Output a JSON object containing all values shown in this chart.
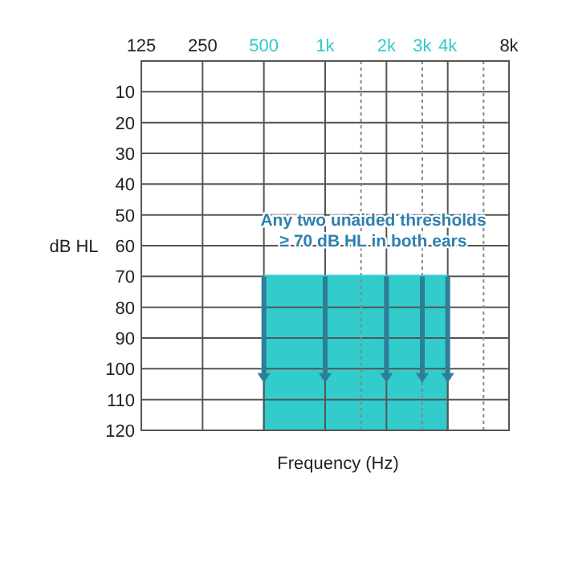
{
  "chart_data": {
    "type": "line",
    "xlabel": "Frequency (Hz)",
    "ylabel": "dB HL",
    "log": "x",
    "grid": true,
    "xlim": [
      125,
      8000
    ],
    "ylim": [
      120,
      0
    ],
    "xticks": [
      125,
      250,
      500,
      {
        "value": 1000,
        "label": "1k"
      },
      {
        "value": 1500,
        "label": null
      },
      {
        "value": 2000,
        "label": "2k"
      },
      {
        "value": 3000,
        "label": "3k"
      },
      {
        "value": 4000,
        "label": "4k"
      },
      {
        "value": 6000,
        "label": null
      },
      {
        "value": 8000,
        "label": "8k"
      }
    ],
    "yticks": [
      10,
      20,
      30,
      40,
      50,
      60,
      70,
      80,
      90,
      100,
      110,
      120
    ],
    "series": [
      {
        "color": "#33cccc",
        "x": [
          500,
          1000,
          2000,
          3000,
          4000
        ],
        "values": [
          70,
          70,
          70,
          70,
          70
        ],
        "lower": [
          120,
          120,
          120,
          120,
          120
        ],
        "upper": [
          70,
          70,
          70,
          70,
          70
        ]
      }
    ],
    "annotations": [
      "Any two unaided thresholds\n≥ 70 dB HL in both ears"
    ]
  }
}
